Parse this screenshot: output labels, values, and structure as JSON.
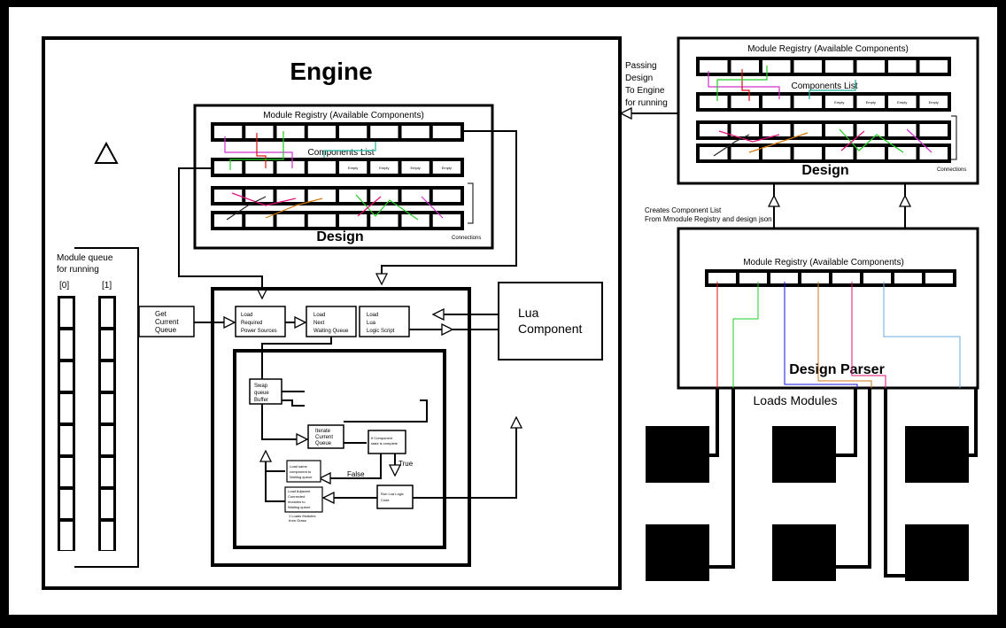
{
  "engine": {
    "title": "Engine",
    "module_queue_title": [
      "Module queue",
      "for running"
    ],
    "queue_labels": [
      "[0]",
      "[1]"
    ],
    "get_current_queue": [
      "Get",
      "Current",
      "Queue"
    ],
    "load_power": [
      "Load",
      "Required",
      "Power Sources"
    ],
    "load_next": [
      "Load",
      "Next",
      "Waiting Queue"
    ],
    "load_lua": [
      "Load",
      "Lua",
      "Logic Script"
    ],
    "swap_buffer": [
      "Swap",
      "queue",
      "Buffer"
    ],
    "iterate_queue": [
      "Iterate",
      "Current",
      "Queue"
    ],
    "if_complete": [
      "If Component",
      "state is complete"
    ],
    "true_label": "True",
    "false_label": "False",
    "load_same": [
      "Load same",
      "component to",
      "Waiting queue"
    ],
    "load_adjacent": [
      "Load Adjacent",
      "Connected",
      "modules to",
      "Waiting queue"
    ],
    "load_adjacent_note": [
      "1 Loads Modules",
      "from Grass"
    ],
    "run_lua": [
      "Run Lua Logic",
      "Code"
    ],
    "design": {
      "registry_title": "Module Registry (Available Components)",
      "components_list": "Components List",
      "empty_label": "Empty",
      "title": "Design",
      "connections": "Connections"
    }
  },
  "lua_component": [
    "Lua",
    "Component"
  ],
  "passing_design": [
    "Passing",
    "Design",
    "To Engine",
    "for running"
  ],
  "design_panel": {
    "registry_title": "Module Registry (Available Components)",
    "components_list": "Components List",
    "empty_label": "Empty",
    "title": "Design",
    "connections": "Connections"
  },
  "creates_component_list": [
    "Creates Component List",
    "From Mmodule Registry and design json"
  ],
  "design_parser": {
    "registry_title": "Module Registry (Available Components)",
    "title": "Design Parser"
  },
  "loads_modules": "Loads Modules",
  "colors": {
    "frame": "#000000",
    "paper": "#ffffff",
    "red": "#e01010",
    "green": "#22cc22",
    "blue": "#1010e0",
    "orange": "#d07a10",
    "pink": "#e0107a",
    "lightblue": "#6aa8e0",
    "magenta": "#cc33cc",
    "teal": "#20b0a0",
    "dark": "#222222"
  }
}
